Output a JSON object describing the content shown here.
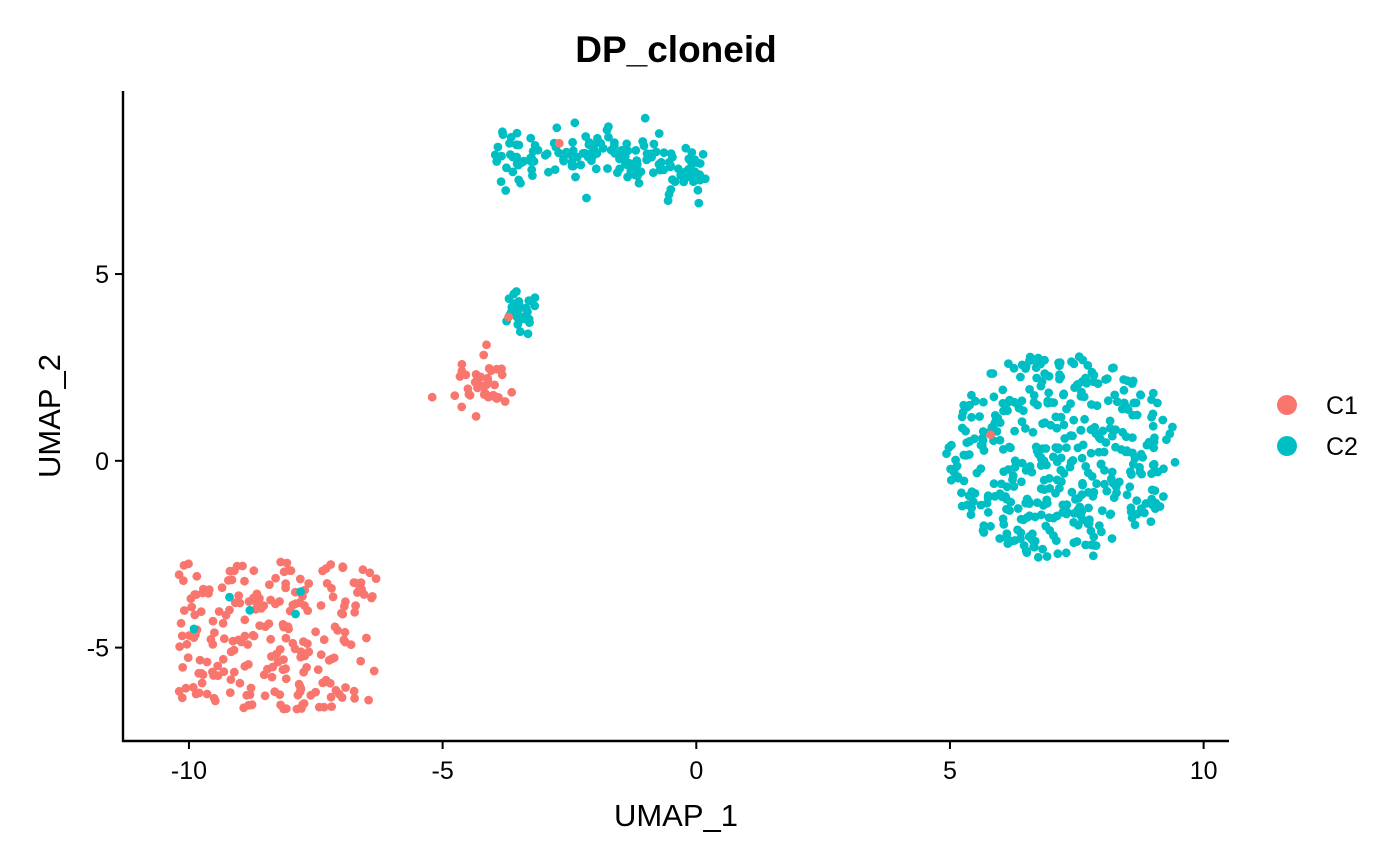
{
  "chart_data": {
    "type": "scatter",
    "title": "DP_cloneid",
    "xlabel": "UMAP_1",
    "ylabel": "UMAP_2",
    "xlim": [
      -11.3,
      10.5
    ],
    "ylim": [
      -7.5,
      9.9
    ],
    "xticks": [
      -10,
      -5,
      0,
      5,
      10
    ],
    "yticks": [
      -5,
      0,
      5
    ],
    "xtick_labels": [
      "-10",
      "-5",
      "0",
      "5",
      "10"
    ],
    "ytick_labels": [
      "-5",
      "0",
      "5"
    ],
    "legend_position": "right",
    "grid": false,
    "series": [
      {
        "name": "C1",
        "color": "#F8766D",
        "clusters": [
          {
            "center": [
              -8.3,
              -4.7
            ],
            "size": 230,
            "shape": "block",
            "xrange": [
              -10.2,
              -6.3
            ],
            "yrange": [
              -6.7,
              -2.7
            ]
          },
          {
            "center": [
              -4.2,
              2.0
            ],
            "size": 40,
            "spread": [
              0.25,
              0.35
            ]
          }
        ],
        "extra_points": [
          [
            -2.7,
            8.5
          ],
          [
            -3.7,
            3.85
          ],
          [
            5.8,
            0.7
          ]
        ]
      },
      {
        "name": "C2",
        "color": "#00BFC4",
        "clusters": [
          {
            "center": [
              7.3,
              0.0
            ],
            "size": 420,
            "shape": "blob",
            "xrange": [
              4.8,
              9.6
            ],
            "yrange": [
              -2.8,
              3.1
            ]
          },
          {
            "center": [
              -2.2,
              7.9
            ],
            "size": 160,
            "shape": "band",
            "xrange": [
              -4.0,
              0.2
            ],
            "yrange": [
              7.1,
              8.9
            ]
          },
          {
            "center": [
              -3.5,
              3.9
            ],
            "size": 30,
            "spread": [
              0.2,
              0.3
            ]
          }
        ],
        "extra_points": [
          [
            -9.9,
            -4.5
          ],
          [
            -9.2,
            -3.65
          ],
          [
            -8.8,
            -4.0
          ],
          [
            -7.9,
            -4.1
          ],
          [
            -7.8,
            -3.5
          ]
        ]
      }
    ]
  }
}
